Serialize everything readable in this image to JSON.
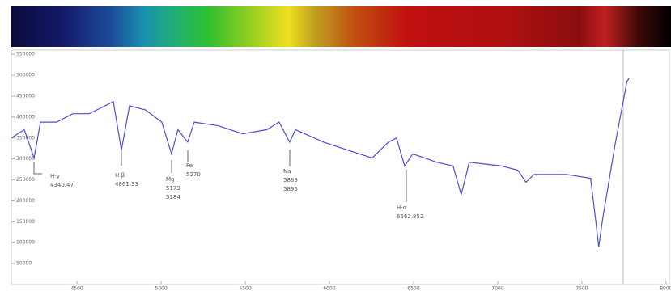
{
  "chart_data": {
    "type": "line",
    "color": "#4b4fd6",
    "x": [
      4110,
      4187,
      4245,
      4283,
      4379,
      4475,
      4572,
      4668,
      4716,
      4764,
      4812,
      4908,
      5004,
      5062,
      5100,
      5158,
      5197,
      5341,
      5485,
      5629,
      5701,
      5764,
      5798,
      5966,
      6110,
      6254,
      6350,
      6399,
      6447,
      6495,
      6639,
      6735,
      6783,
      6831,
      7024,
      7120,
      7168,
      7216,
      7408,
      7552,
      7581,
      7600,
      7624,
      7696,
      7768,
      7783
    ],
    "values": [
      350000,
      370000,
      302000,
      388000,
      388000,
      408000,
      408000,
      427000,
      437000,
      321000,
      427000,
      417000,
      388000,
      312000,
      370000,
      340000,
      388000,
      379000,
      360000,
      370000,
      388000,
      340000,
      370000,
      340000,
      321000,
      302000,
      340000,
      350000,
      283000,
      312000,
      292000,
      283000,
      215000,
      292000,
      283000,
      273000,
      244000,
      263000,
      263000,
      254000,
      158000,
      90000,
      158000,
      331000,
      485000,
      494000
    ],
    "xlim": [
      4110,
      8020
    ],
    "ylim": [
      0,
      560000
    ],
    "xticks": [
      4500,
      5000,
      5500,
      6000,
      6500,
      7000,
      7500,
      8000
    ],
    "yticks": [
      50000,
      100000,
      150000,
      200000,
      250000,
      300000,
      350000,
      400000,
      450000,
      500000,
      550000
    ],
    "annotations": [
      {
        "name": "H-γ",
        "lines": [
          "4340.47"
        ]
      },
      {
        "name": "H-β",
        "lines": [
          "4861.33"
        ]
      },
      {
        "name": "Mg",
        "lines": [
          "5173",
          "5184"
        ]
      },
      {
        "name": "Fe",
        "lines": [
          "5270"
        ]
      },
      {
        "name": "Na",
        "lines": [
          "5889",
          "5895"
        ]
      },
      {
        "name": "H-α",
        "lines": [
          "6562.852"
        ]
      }
    ]
  }
}
